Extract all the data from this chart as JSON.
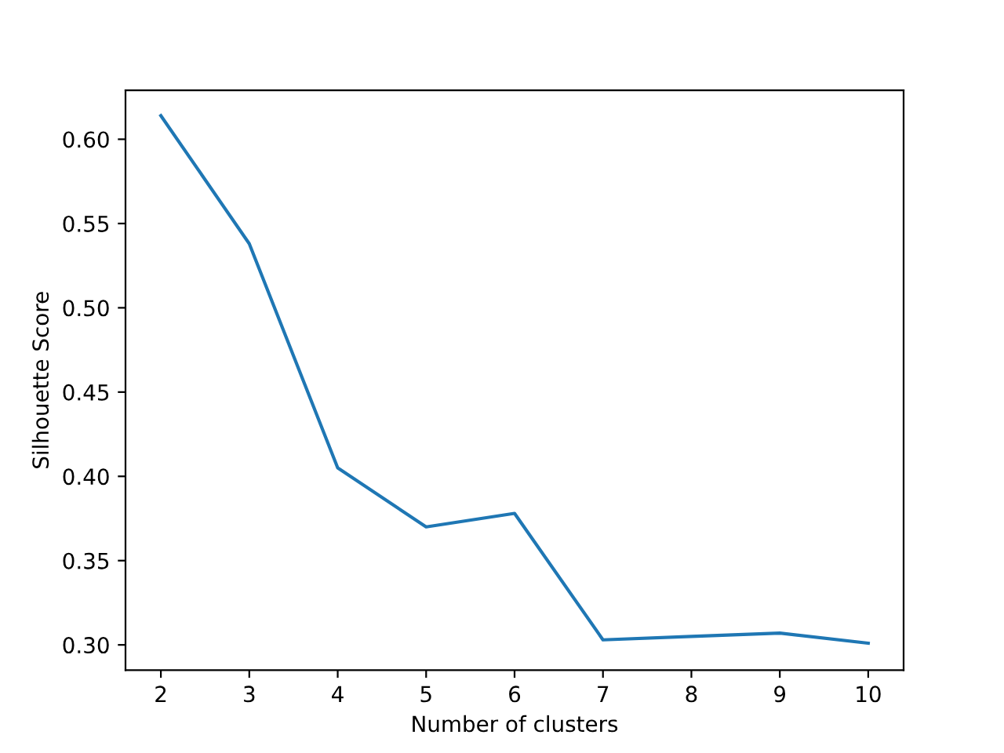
{
  "chart_data": {
    "type": "line",
    "xlabel": "Number of clusters",
    "ylabel": "Silhouette Score",
    "x": [
      2,
      3,
      4,
      5,
      6,
      7,
      8,
      9,
      10
    ],
    "series": [
      {
        "color": "#1f77b4",
        "values": [
          0.614,
          0.538,
          0.405,
          0.37,
          0.378,
          0.303,
          0.305,
          0.307,
          0.301
        ]
      }
    ],
    "xlim": [
      1.6,
      10.4
    ],
    "xticks": [
      2,
      3,
      4,
      5,
      6,
      7,
      8,
      9,
      10
    ],
    "ylim": [
      0.285,
      0.629
    ],
    "yticks": [
      {
        "value": 0.3,
        "label": "0.30"
      },
      {
        "value": 0.35,
        "label": "0.35"
      },
      {
        "value": 0.4,
        "label": "0.40"
      },
      {
        "value": 0.45,
        "label": "0.45"
      },
      {
        "value": 0.5,
        "label": "0.50"
      },
      {
        "value": 0.55,
        "label": "0.55"
      },
      {
        "value": 0.6,
        "label": "0.60"
      }
    ],
    "grid": false,
    "marker": "none",
    "line_style": "solid"
  }
}
